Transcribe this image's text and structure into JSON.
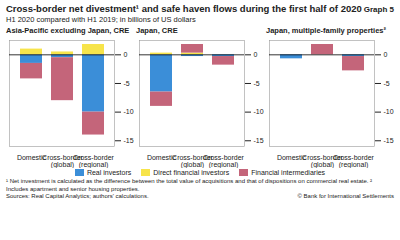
{
  "title": "Cross-border net divestment¹ and safe haven flows during the first half of 2020",
  "figure_label": "Graph 5",
  "subtitle": "H1 2020 compared with H1 2019; in billions of US dollars",
  "notes": [
    "¹ Net investment is calculated as the difference between the total value of acquisitions and that of dispositions on commercial real estate.",
    "² Includes apartment and senior housing properties."
  ],
  "source": "Sources: Real Capital Analytics; authors' calculations.",
  "copyright": "© Bank for International Settlements",
  "chart_data": [
    {
      "type": "bar",
      "title": "Asia-Pacific excluding Japan, CRE",
      "stacked": true,
      "categories": [
        "Domestic",
        "Cross-border (global)",
        "Cross-border (regional)"
      ],
      "series": [
        {
          "name": "Real investors",
          "color": "#3b8ed8",
          "values": [
            -1.5,
            -0.5,
            -10
          ]
        },
        {
          "name": "Direct financial investors",
          "color": "#f7e44a",
          "values": [
            1,
            0.5,
            1.8
          ]
        },
        {
          "name": "Financial intermediaries",
          "color": "#c4657a",
          "values": [
            -2.7,
            -7.5,
            -4
          ]
        }
      ],
      "ylim": [
        -16,
        2.5
      ],
      "yticks": [
        -15,
        -10,
        -5,
        0
      ]
    },
    {
      "type": "bar",
      "title": "Japan, CRE",
      "stacked": true,
      "categories": [
        "Domestic",
        "Cross-border (global)",
        "Cross-border (regional)"
      ],
      "series": [
        {
          "name": "Real investors",
          "color": "#3b8ed8",
          "values": [
            -6.5,
            -0.3,
            -0.3
          ]
        },
        {
          "name": "Direct financial investors",
          "color": "#f7e44a",
          "values": [
            0.3,
            0.3,
            0
          ]
        },
        {
          "name": "Financial intermediaries",
          "color": "#c4657a",
          "values": [
            -2.5,
            1.5,
            -1.5
          ]
        }
      ],
      "ylim": [
        -16,
        2.5
      ],
      "yticks": [
        -15,
        -10,
        -5,
        0
      ]
    },
    {
      "type": "bar",
      "title": "Japan, multiple-family properties²",
      "stacked": true,
      "categories": [
        "Domestic",
        "Cross-border (global)",
        "Cross-border (regional)"
      ],
      "series": [
        {
          "name": "Real investors",
          "color": "#3b8ed8",
          "values": [
            -0.7,
            0,
            -0.3
          ]
        },
        {
          "name": "Direct financial investors",
          "color": "#f7e44a",
          "values": [
            0,
            0,
            0
          ]
        },
        {
          "name": "Financial intermediaries",
          "color": "#c4657a",
          "values": [
            0,
            1.8,
            -2.5
          ]
        }
      ],
      "ylim": [
        -16,
        2.5
      ],
      "yticks": [
        -15,
        -10,
        -5,
        0
      ]
    }
  ]
}
